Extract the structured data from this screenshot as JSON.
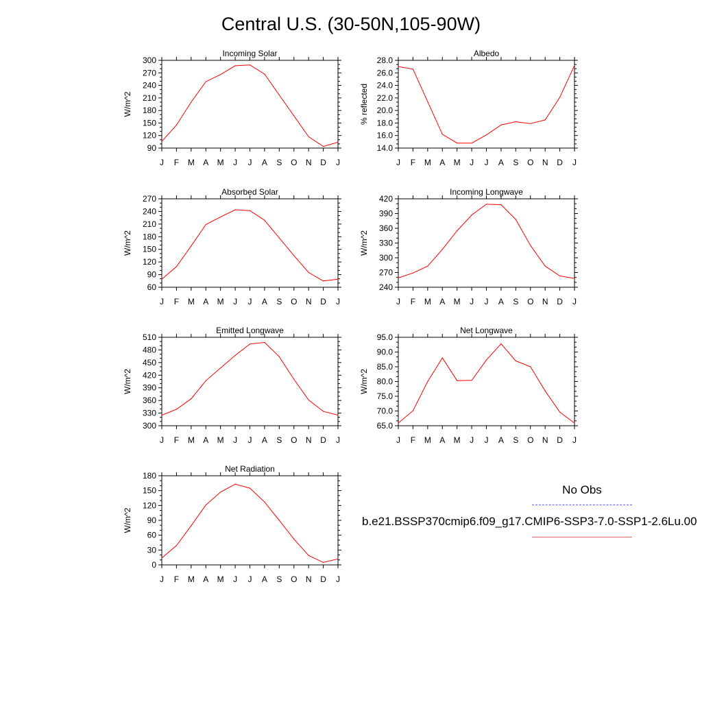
{
  "page": {
    "title": "Central U.S. (30-50N,105-90W)"
  },
  "legend": {
    "no_obs": "No Obs",
    "model": "b.e21.BSSP370cmip6.f09_g17.CMIP6-SSP3-7.0-SSP1-2.6Lu.00",
    "obs_color": "#5a5aff",
    "model_color": "#ff0000"
  },
  "chart_data": [
    {
      "type": "line",
      "title": "Incoming Solar",
      "ylabel": "W/m^2",
      "categories": [
        "J",
        "F",
        "M",
        "A",
        "M",
        "J",
        "J",
        "A",
        "S",
        "O",
        "N",
        "D",
        "J"
      ],
      "yticks": [
        "90",
        "120",
        "150",
        "180",
        "210",
        "240",
        "270",
        "300"
      ],
      "ylim": [
        90,
        300
      ],
      "series": [
        {
          "values": [
            106,
            145,
            200,
            249,
            266,
            287,
            289,
            267,
            217,
            167,
            117,
            94,
            104
          ]
        }
      ]
    },
    {
      "type": "line",
      "title": "Albedo",
      "ylabel": "% reflected",
      "categories": [
        "J",
        "F",
        "M",
        "A",
        "M",
        "J",
        "J",
        "A",
        "S",
        "O",
        "N",
        "D",
        "J"
      ],
      "yticks": [
        "14.0",
        "16.0",
        "18.0",
        "20.0",
        "22.0",
        "24.0",
        "26.0",
        "28.0"
      ],
      "ylim": [
        14,
        28
      ],
      "series": [
        {
          "values": [
            27.0,
            26.6,
            21.4,
            16.2,
            14.8,
            14.8,
            16.1,
            17.7,
            18.2,
            17.9,
            18.5,
            22.1,
            27.2
          ]
        }
      ]
    },
    {
      "type": "line",
      "title": "Absorbed Solar",
      "ylabel": "W/m^2",
      "categories": [
        "J",
        "F",
        "M",
        "A",
        "M",
        "J",
        "J",
        "A",
        "S",
        "O",
        "N",
        "D",
        "J"
      ],
      "yticks": [
        "60",
        "90",
        "120",
        "150",
        "180",
        "210",
        "240",
        "270"
      ],
      "ylim": [
        60,
        270
      ],
      "series": [
        {
          "values": [
            79,
            109,
            158,
            209,
            227,
            244,
            242,
            219,
            177,
            135,
            95,
            75,
            79
          ]
        }
      ]
    },
    {
      "type": "line",
      "title": "Incoming Longwave",
      "ylabel": "W/m^2",
      "categories": [
        "J",
        "F",
        "M",
        "A",
        "M",
        "J",
        "J",
        "A",
        "S",
        "O",
        "N",
        "D",
        "J"
      ],
      "yticks": [
        "240",
        "270",
        "300",
        "330",
        "360",
        "390",
        "420"
      ],
      "ylim": [
        240,
        420
      ],
      "series": [
        {
          "values": [
            259,
            269,
            283,
            317,
            355,
            387,
            409,
            408,
            378,
            325,
            283,
            263,
            258
          ]
        }
      ]
    },
    {
      "type": "line",
      "title": "Emitted Longwave",
      "ylabel": "W/m^2",
      "categories": [
        "J",
        "F",
        "M",
        "A",
        "M",
        "J",
        "J",
        "A",
        "S",
        "O",
        "N",
        "D",
        "J"
      ],
      "yticks": [
        "300",
        "330",
        "360",
        "390",
        "420",
        "450",
        "480",
        "510"
      ],
      "ylim": [
        300,
        510
      ],
      "series": [
        {
          "values": [
            325,
            339,
            364,
            407,
            437,
            467,
            494,
            498,
            464,
            410,
            361,
            334,
            325
          ]
        }
      ]
    },
    {
      "type": "line",
      "title": "Net Longwave",
      "ylabel": "W/m^2",
      "categories": [
        "J",
        "F",
        "M",
        "A",
        "M",
        "J",
        "J",
        "A",
        "S",
        "O",
        "N",
        "D",
        "J"
      ],
      "yticks": [
        "65.0",
        "70.0",
        "75.0",
        "80.0",
        "85.0",
        "90.0",
        "95.0"
      ],
      "ylim": [
        65,
        95
      ],
      "series": [
        {
          "values": [
            65.9,
            70.1,
            80.0,
            88.0,
            80.3,
            80.4,
            87.3,
            92.8,
            87.0,
            85.0,
            76.8,
            69.6,
            65.9
          ]
        }
      ]
    },
    {
      "type": "line",
      "title": "Net Radiation",
      "ylabel": "W/m^2",
      "categories": [
        "J",
        "F",
        "M",
        "A",
        "M",
        "J",
        "J",
        "A",
        "S",
        "O",
        "N",
        "D",
        "J"
      ],
      "yticks": [
        "0",
        "30",
        "60",
        "90",
        "120",
        "150",
        "180"
      ],
      "ylim": [
        0,
        180
      ],
      "series": [
        {
          "values": [
            14,
            39,
            79,
            121,
            147,
            163,
            155,
            127,
            90,
            52,
            19,
            5,
            12
          ]
        }
      ]
    }
  ]
}
